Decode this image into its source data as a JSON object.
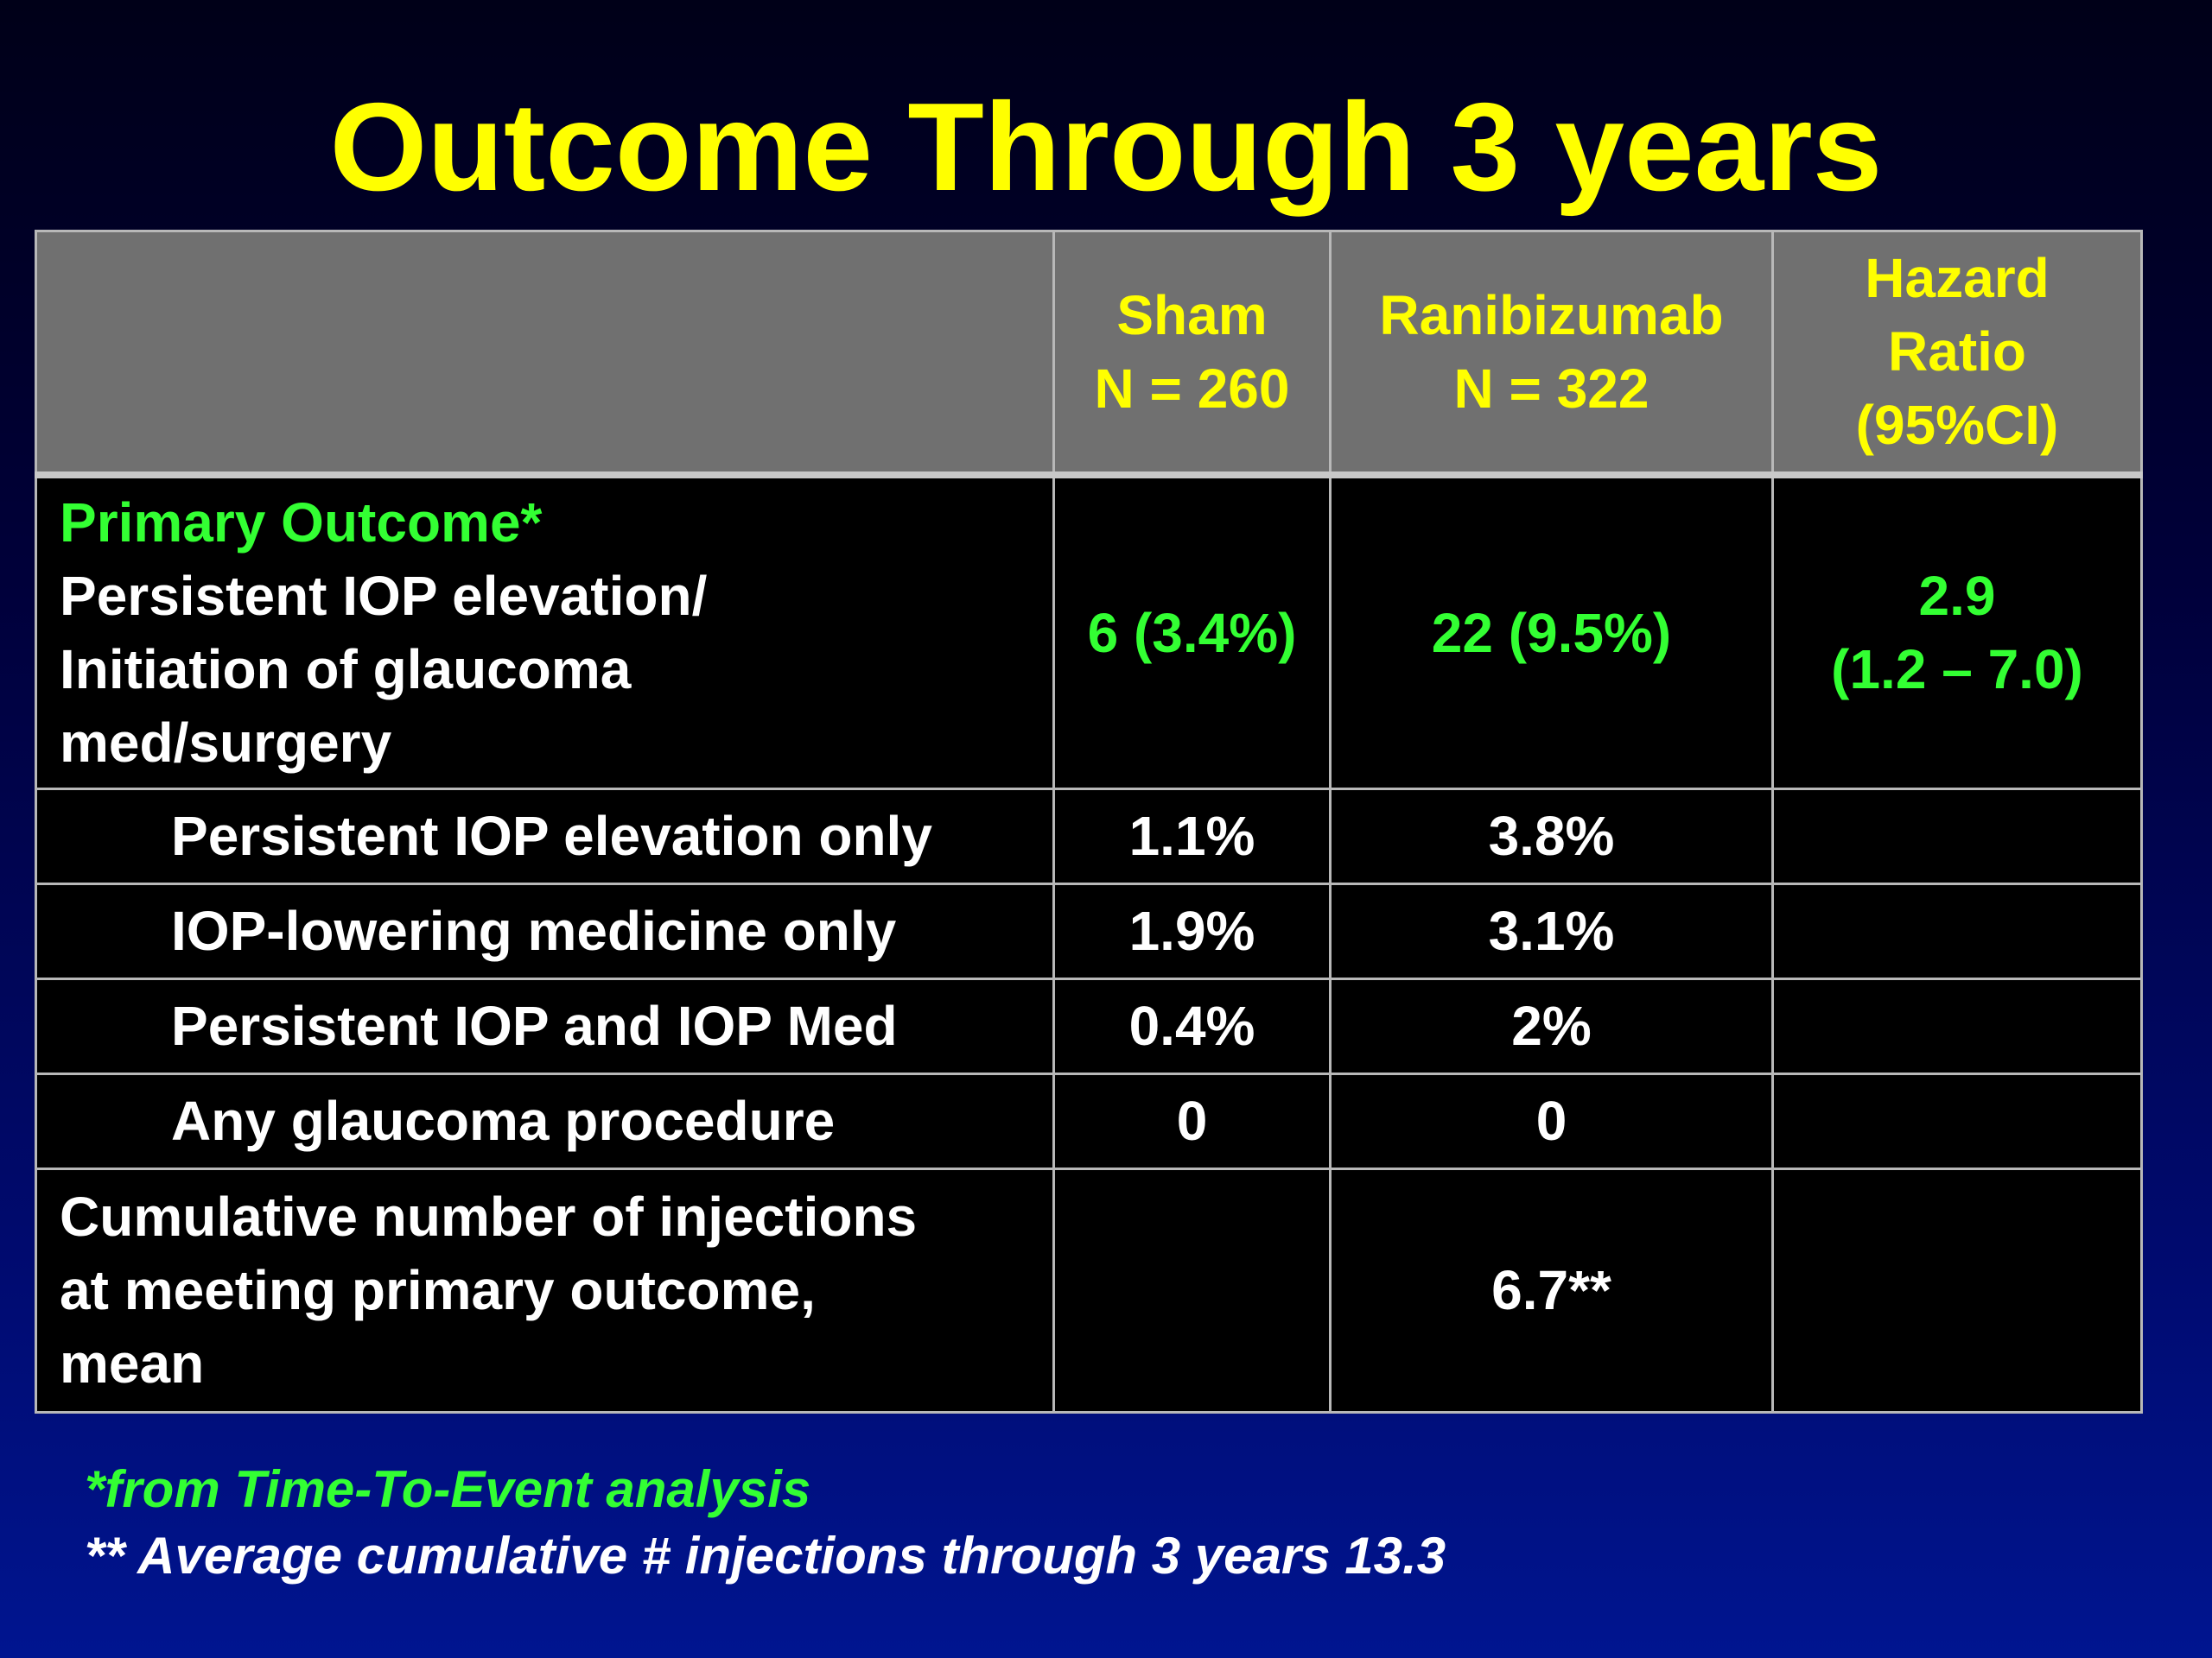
{
  "title": "Outcome Through 3 years",
  "table": {
    "headers": [
      {
        "lines": [
          "",
          ""
        ]
      },
      {
        "lines": [
          "Sham",
          "N = 260"
        ]
      },
      {
        "lines": [
          "Ranibizumab",
          "N = 322"
        ]
      },
      {
        "lines": [
          "Hazard",
          "Ratio",
          "(95%CI)"
        ]
      }
    ],
    "primary": {
      "label_heading": "Primary Outcome*",
      "label_lines": [
        "Persistent IOP elevation/",
        "Initiation of glaucoma",
        "med/surgery"
      ],
      "sham": "6 (3.4%)",
      "ranibizumab": "22 (9.5%)",
      "hazard_ratio": "2.9",
      "hazard_ci": "(1.2 – 7.0)"
    },
    "sub_rows": [
      {
        "label": "Persistent IOP elevation only",
        "sham": "1.1%",
        "ranibizumab": "3.8%",
        "hazard": ""
      },
      {
        "label": "IOP-lowering medicine only",
        "sham": "1.9%",
        "ranibizumab": "3.1%",
        "hazard": ""
      },
      {
        "label": "Persistent IOP and IOP Med",
        "sham": "0.4%",
        "ranibizumab": "2%",
        "hazard": ""
      },
      {
        "label": "Any glaucoma procedure",
        "sham": "0",
        "ranibizumab": "0",
        "hazard": ""
      }
    ],
    "cumulative": {
      "label_lines": [
        "Cumulative number of injections",
        "at meeting primary outcome,",
        "mean"
      ],
      "sham": "",
      "ranibizumab": "6.7**",
      "hazard": ""
    }
  },
  "footnotes": {
    "note1": "*from Time-To-Event analysis",
    "note2": "** Average cumulative # injections through 3 years 13.3"
  },
  "colors": {
    "title": "#ffff00",
    "header_bg": "#707070",
    "header_text": "#ffff00",
    "highlight_green": "#33ff33",
    "cell_bg": "#000000",
    "body_text": "#ffffff"
  }
}
